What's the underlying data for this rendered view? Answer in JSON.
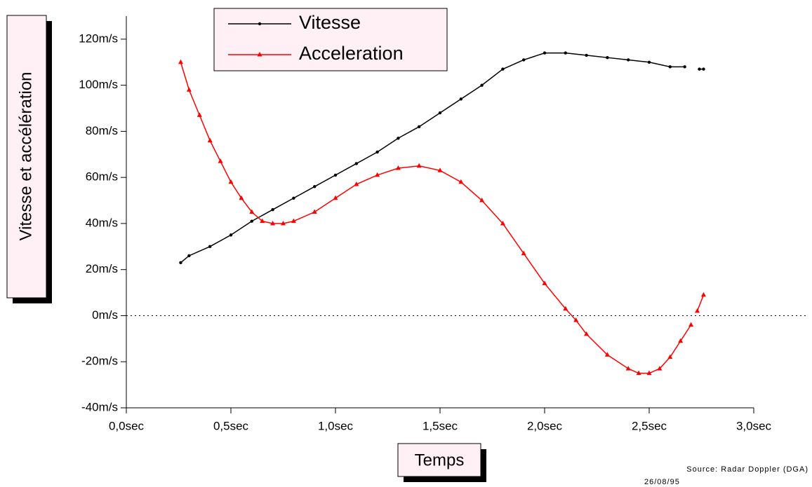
{
  "chart_data": {
    "type": "line",
    "x_label": "Temps",
    "y_label": "Vitesse et accélération",
    "source": "Source: Radar Doppler (DGA)",
    "date": "26/08/95",
    "xlim": [
      0,
      3.0
    ],
    "ylim": [
      -40,
      130
    ],
    "xticks": [
      {
        "value": 0,
        "label": "0,0sec"
      },
      {
        "value": 0.5,
        "label": "0,5sec"
      },
      {
        "value": 1.0,
        "label": "1,0sec"
      },
      {
        "value": 1.5,
        "label": "1,5sec"
      },
      {
        "value": 2.0,
        "label": "2,0sec"
      },
      {
        "value": 2.5,
        "label": "2,5sec"
      },
      {
        "value": 3.0,
        "label": "3,0sec"
      }
    ],
    "yticks": [
      {
        "value": -40,
        "label": "-40m/s"
      },
      {
        "value": -20,
        "label": "-20m/s"
      },
      {
        "value": 0,
        "label": "0m/s"
      },
      {
        "value": 20,
        "label": "20m/s"
      },
      {
        "value": 40,
        "label": "40m/s"
      },
      {
        "value": 60,
        "label": "60m/s"
      },
      {
        "value": 80,
        "label": "80m/s"
      },
      {
        "value": 100,
        "label": "100m/s"
      },
      {
        "value": 120,
        "label": "120m/s"
      }
    ],
    "legend": "top",
    "series": [
      {
        "name": "Vitesse",
        "color": "#000000",
        "marker": "dot",
        "x": [
          0.26,
          0.3,
          0.4,
          0.5,
          0.6,
          0.7,
          0.8,
          0.9,
          1.0,
          1.1,
          1.2,
          1.3,
          1.4,
          1.5,
          1.6,
          1.7,
          1.8,
          1.9,
          2.0,
          2.1,
          2.2,
          2.3,
          2.4,
          2.5,
          2.6,
          2.67,
          2.7,
          2.74,
          2.76
        ],
        "values": [
          23,
          26,
          30,
          35,
          41,
          46,
          51,
          56,
          61,
          66,
          71,
          77,
          82,
          88,
          94,
          100,
          107,
          111,
          114,
          114,
          113,
          112,
          111,
          110,
          108,
          108,
          null,
          107,
          107
        ]
      },
      {
        "name": "Acceleration",
        "color": "#ff0000",
        "marker": "triangle",
        "x": [
          0.26,
          0.3,
          0.35,
          0.4,
          0.45,
          0.5,
          0.55,
          0.6,
          0.65,
          0.7,
          0.75,
          0.8,
          0.9,
          1.0,
          1.1,
          1.2,
          1.3,
          1.4,
          1.5,
          1.6,
          1.7,
          1.8,
          1.9,
          2.0,
          2.1,
          2.15,
          2.2,
          2.3,
          2.4,
          2.45,
          2.5,
          2.55,
          2.6,
          2.65,
          2.7,
          2.72,
          2.73,
          2.76
        ],
        "values": [
          110,
          98,
          87,
          76,
          67,
          58,
          51,
          45,
          41,
          40,
          40,
          41,
          45,
          51,
          57,
          61,
          64,
          65,
          63,
          58,
          50,
          40,
          27,
          14,
          3,
          -2,
          -8,
          -17,
          -23,
          -25,
          -25,
          -23,
          -18,
          -11,
          -4,
          null,
          2,
          9
        ]
      }
    ]
  }
}
